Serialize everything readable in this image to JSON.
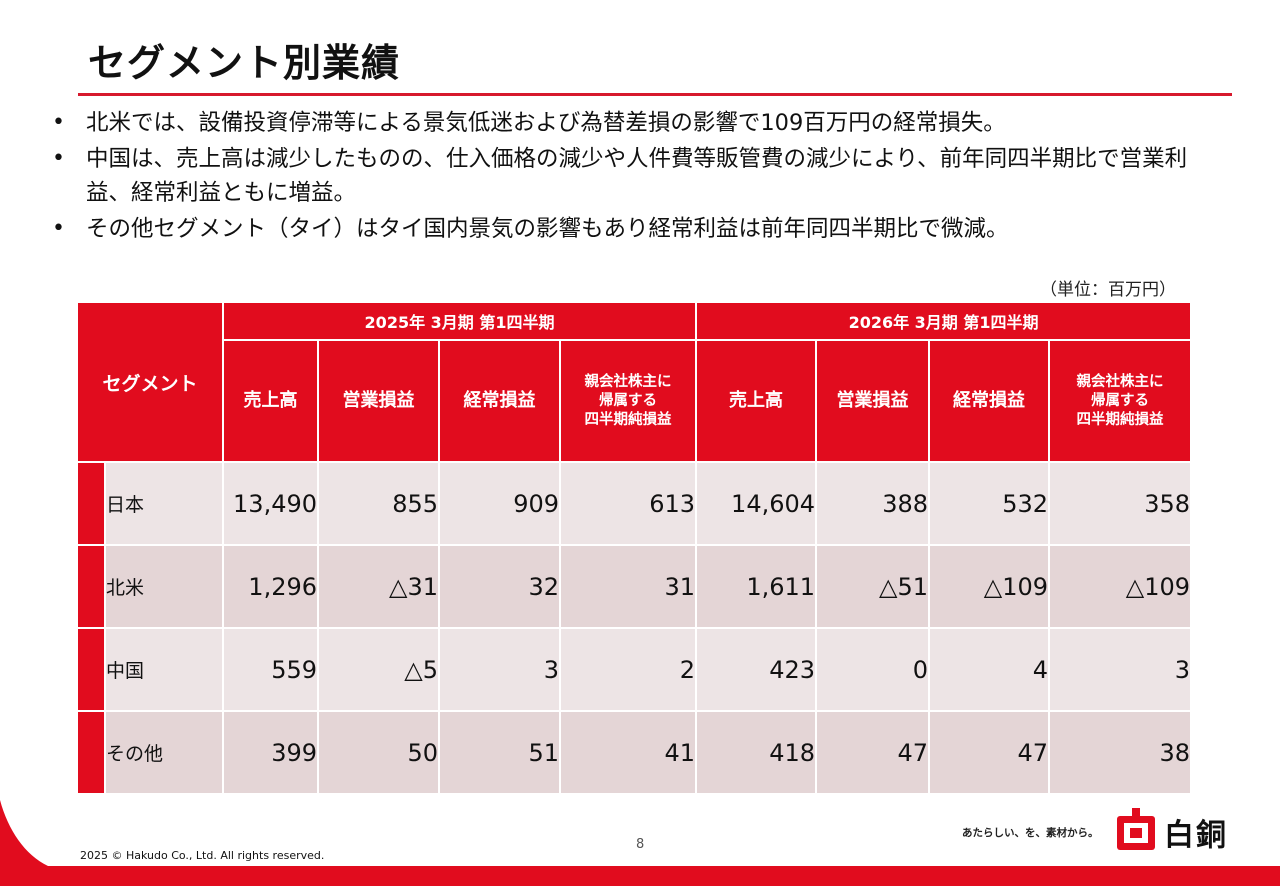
{
  "page": {
    "title": "セグメント別業績",
    "bullets": [
      "北米では、設備投資停滞等による景気低迷および為替差損の影響で109百万円の経常損失。",
      "中国は、売上高は減少したものの、仕入価格の減少や人件費等販管費の減少により、前年同四半期比で営業利益、経常利益ともに増益。",
      "その他セグメント（タイ）はタイ国内景気の影響もあり経常利益は前年同四半期比で微減。"
    ],
    "unit_note": "（単位：百万円）",
    "page_number": "8",
    "copyright": "2025 © Hakudo Co., Ltd. All rights reserved.",
    "tagline": "あたらしい、を、素材から。",
    "logo_text": "白銅"
  },
  "table": {
    "segment_header": "セグメント",
    "periods": [
      "2025年 3月期 第1四半期",
      "2026年 3月期 第1四半期"
    ],
    "columns": [
      "売上高",
      "営業損益",
      "経常損益",
      "親会社株主に\n帰属する\n四半期純損益"
    ],
    "rows": [
      {
        "segment": "日本",
        "values": [
          "13,490",
          "855",
          "909",
          "613",
          "14,604",
          "388",
          "532",
          "358"
        ]
      },
      {
        "segment": "北米",
        "values": [
          "1,296",
          "△31",
          "32",
          "31",
          "1,611",
          "△51",
          "△109",
          "△109"
        ]
      },
      {
        "segment": "中国",
        "values": [
          "559",
          "△5",
          "3",
          "2",
          "423",
          "0",
          "4",
          "3"
        ]
      },
      {
        "segment": "その他",
        "values": [
          "399",
          "50",
          "51",
          "41",
          "418",
          "47",
          "47",
          "38"
        ]
      }
    ]
  },
  "colors": {
    "brand_red": "#e10c1e",
    "row_light": "#ede4e5",
    "row_dark": "#e4d5d6"
  }
}
